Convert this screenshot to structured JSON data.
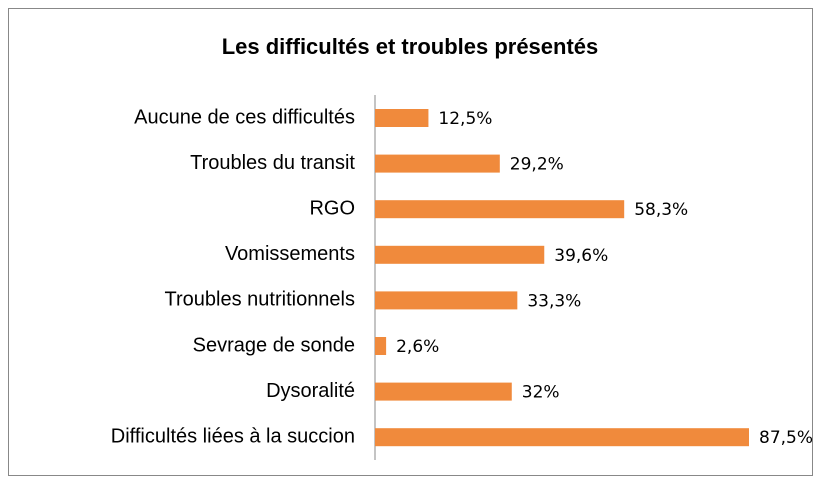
{
  "chart_data": {
    "type": "bar",
    "orientation": "horizontal",
    "title": "Les difficultés et troubles présentés",
    "categories": [
      "Aucune de ces difficultés",
      "Troubles du transit",
      "RGO",
      "Vomissements",
      "Troubles nutritionnels",
      "Sevrage de sonde",
      "Dysoralité",
      "Difficultés liées à la succion"
    ],
    "values": [
      12.5,
      29.2,
      58.3,
      39.6,
      33.3,
      2.6,
      32,
      87.5
    ],
    "value_labels": [
      "12,5%",
      "29,2%",
      "58,3%",
      "39,6%",
      "33,3%",
      "2,6%",
      "32%",
      "87,5%"
    ],
    "color": "#f08a3c"
  }
}
